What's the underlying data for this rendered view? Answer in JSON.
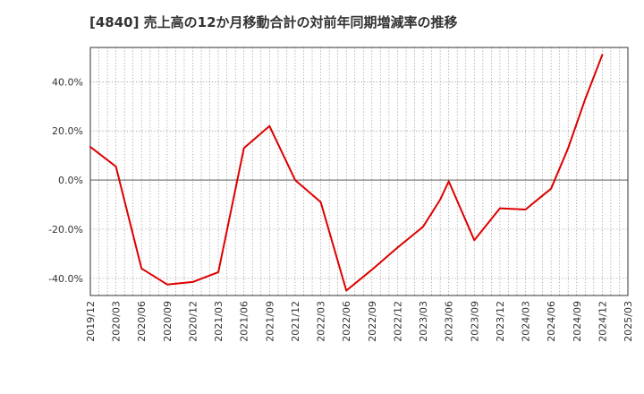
{
  "chart_data": {
    "type": "line",
    "title": "[4840]  売上高の12か月移動合計の対前年同期増減率の推移",
    "xlabel": "",
    "ylabel": "",
    "x_ticks": [
      "2019/12",
      "2020/03",
      "2020/06",
      "2020/09",
      "2020/12",
      "2021/03",
      "2021/06",
      "2021/09",
      "2021/12",
      "2022/03",
      "2022/06",
      "2022/09",
      "2022/12",
      "2023/03",
      "2023/06",
      "2023/09",
      "2023/12",
      "2024/03",
      "2024/06",
      "2024/09",
      "2024/12",
      "2025/03"
    ],
    "y_ticks": [
      -40,
      -20,
      0,
      20,
      40
    ],
    "y_tick_labels": [
      "-40.0%",
      "-20.0%",
      "0.0%",
      "20.0%",
      "40.0%"
    ],
    "ylim": [
      -47,
      54
    ],
    "grid": true,
    "series": [
      {
        "name": "対前年同期増減率",
        "color": "#dd0000",
        "x": [
          "2019/12",
          "2020/03",
          "2020/06",
          "2020/09",
          "2020/12",
          "2021/03",
          "2021/06",
          "2021/09",
          "2021/12",
          "2022/03",
          "2022/06",
          "2022/09",
          "2022/10",
          "2022/12",
          "2023/03",
          "2023/05",
          "2023/06",
          "2023/09",
          "2023/12",
          "2024/03",
          "2024/06",
          "2024/08",
          "2024/10",
          "2024/12"
        ],
        "values": [
          13.5,
          5.5,
          -36.0,
          -42.5,
          -41.5,
          -37.5,
          13.0,
          22.0,
          0.0,
          -9.0,
          -45.0,
          -36.5,
          -33.5,
          -27.5,
          -19.0,
          -8.0,
          -0.5,
          -24.5,
          -11.5,
          -12.0,
          -3.5,
          13.0,
          33.0,
          51.0
        ]
      }
    ]
  }
}
